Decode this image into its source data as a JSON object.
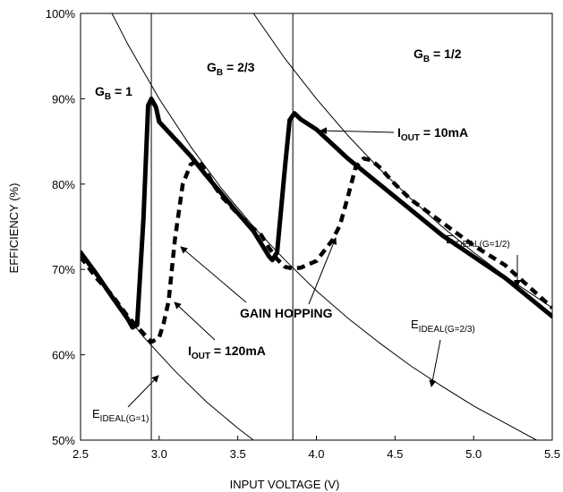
{
  "chart_data": {
    "type": "line",
    "xlabel": "INPUT VOLTAGE (V)",
    "ylabel": "EFFICIENCY (%)",
    "xlim": [
      2.5,
      5.5
    ],
    "ylim": [
      50,
      100
    ],
    "xticks": [
      "2.5",
      "3.0",
      "3.5",
      "4.0",
      "4.5",
      "5.0",
      "5.5"
    ],
    "yticks": [
      "50%",
      "60%",
      "70%",
      "80%",
      "90%",
      "100%"
    ],
    "grid": false,
    "vlines": [
      2.95,
      3.85
    ],
    "region_labels": [
      {
        "main": "G",
        "sub": "B",
        "rest": " = 1"
      },
      {
        "main": "G",
        "sub": "B",
        "rest": " = 2/3"
      },
      {
        "main": "G",
        "sub": "B",
        "rest": " = 1/2"
      }
    ],
    "series": [
      {
        "name_main": "I",
        "name_sub": "OUT",
        "name_rest": " = 10mA",
        "style": "solid-thick",
        "x": [
          2.5,
          2.6,
          2.7,
          2.8,
          2.83,
          2.86,
          2.9,
          2.93,
          2.95,
          2.98,
          3.0,
          3.1,
          3.2,
          3.3,
          3.4,
          3.5,
          3.6,
          3.7,
          3.72,
          3.75,
          3.8,
          3.83,
          3.86,
          3.9,
          4.0,
          4.2,
          4.4,
          4.6,
          4.8,
          5.0,
          5.2,
          5.5
        ],
        "y": [
          72,
          69.5,
          66.8,
          64.2,
          63.2,
          63.5,
          76,
          89.2,
          90,
          89,
          87.3,
          85.3,
          83.3,
          81,
          78.8,
          76.6,
          74.5,
          71.5,
          71.1,
          72,
          82,
          87.5,
          88.3,
          87.6,
          86.4,
          83,
          80,
          77,
          74,
          71.5,
          69,
          64.5
        ]
      },
      {
        "name_main": "I",
        "name_sub": "OUT",
        "name_rest": " = 120mA",
        "style": "dashed-thick",
        "x": [
          2.5,
          2.6,
          2.7,
          2.8,
          2.9,
          2.95,
          3.0,
          3.03,
          3.06,
          3.1,
          3.15,
          3.2,
          3.25,
          3.3,
          3.35,
          3.4,
          3.5,
          3.6,
          3.65,
          3.7,
          3.75,
          3.8,
          3.85,
          3.9,
          3.95,
          4.0,
          4.05,
          4.1,
          4.15,
          4.2,
          4.25,
          4.3,
          4.35,
          4.4,
          4.5,
          4.6,
          4.8,
          5.0,
          5.2,
          5.5
        ],
        "y": [
          71.5,
          69,
          67,
          64.5,
          62.5,
          61.5,
          62,
          63.8,
          66.3,
          73.5,
          80,
          82.3,
          82.8,
          81.5,
          79.8,
          78.5,
          76.5,
          74.8,
          74,
          72.5,
          71.2,
          70.3,
          70.1,
          70.2,
          70.6,
          71,
          72.2,
          73.4,
          75.2,
          78.5,
          82,
          83,
          82.8,
          82,
          80,
          78.2,
          75.5,
          72.8,
          70.5,
          65.5
        ]
      },
      {
        "name_main": "E",
        "name_sub": "IDEAL(G=1)",
        "name_rest": "",
        "style": "thin",
        "x": [
          2.5,
          2.7,
          2.9,
          3.1,
          3.3,
          3.5,
          3.6
        ],
        "y": [
          72,
          66.7,
          62.1,
          58.1,
          54.5,
          51.4,
          50
        ]
      },
      {
        "name_main": "E",
        "name_sub": "IDEAL(G=2/3)",
        "name_rest": "",
        "style": "thin",
        "x": [
          2.7,
          2.8,
          3.0,
          3.2,
          3.4,
          3.6,
          3.8,
          4.0,
          4.2,
          4.4,
          4.6,
          4.8,
          5.0,
          5.2,
          5.4
        ],
        "y": [
          100,
          96.4,
          90,
          84.4,
          79.4,
          75,
          71.1,
          67.5,
          64.3,
          61.4,
          58.7,
          56.3,
          54,
          52,
          50
        ]
      },
      {
        "name_main": "E",
        "name_sub": "IDEAL(G=1/2)",
        "name_rest": "",
        "style": "thin",
        "x": [
          3.6,
          3.8,
          4.0,
          4.2,
          4.4,
          4.6,
          4.8,
          5.0,
          5.2,
          5.5
        ],
        "y": [
          100,
          94.7,
          90,
          85.7,
          81.8,
          78.3,
          75,
          72,
          69.2,
          65.5
        ]
      }
    ],
    "annotations": {
      "gain_hopping": "GAIN HOPPING"
    }
  }
}
